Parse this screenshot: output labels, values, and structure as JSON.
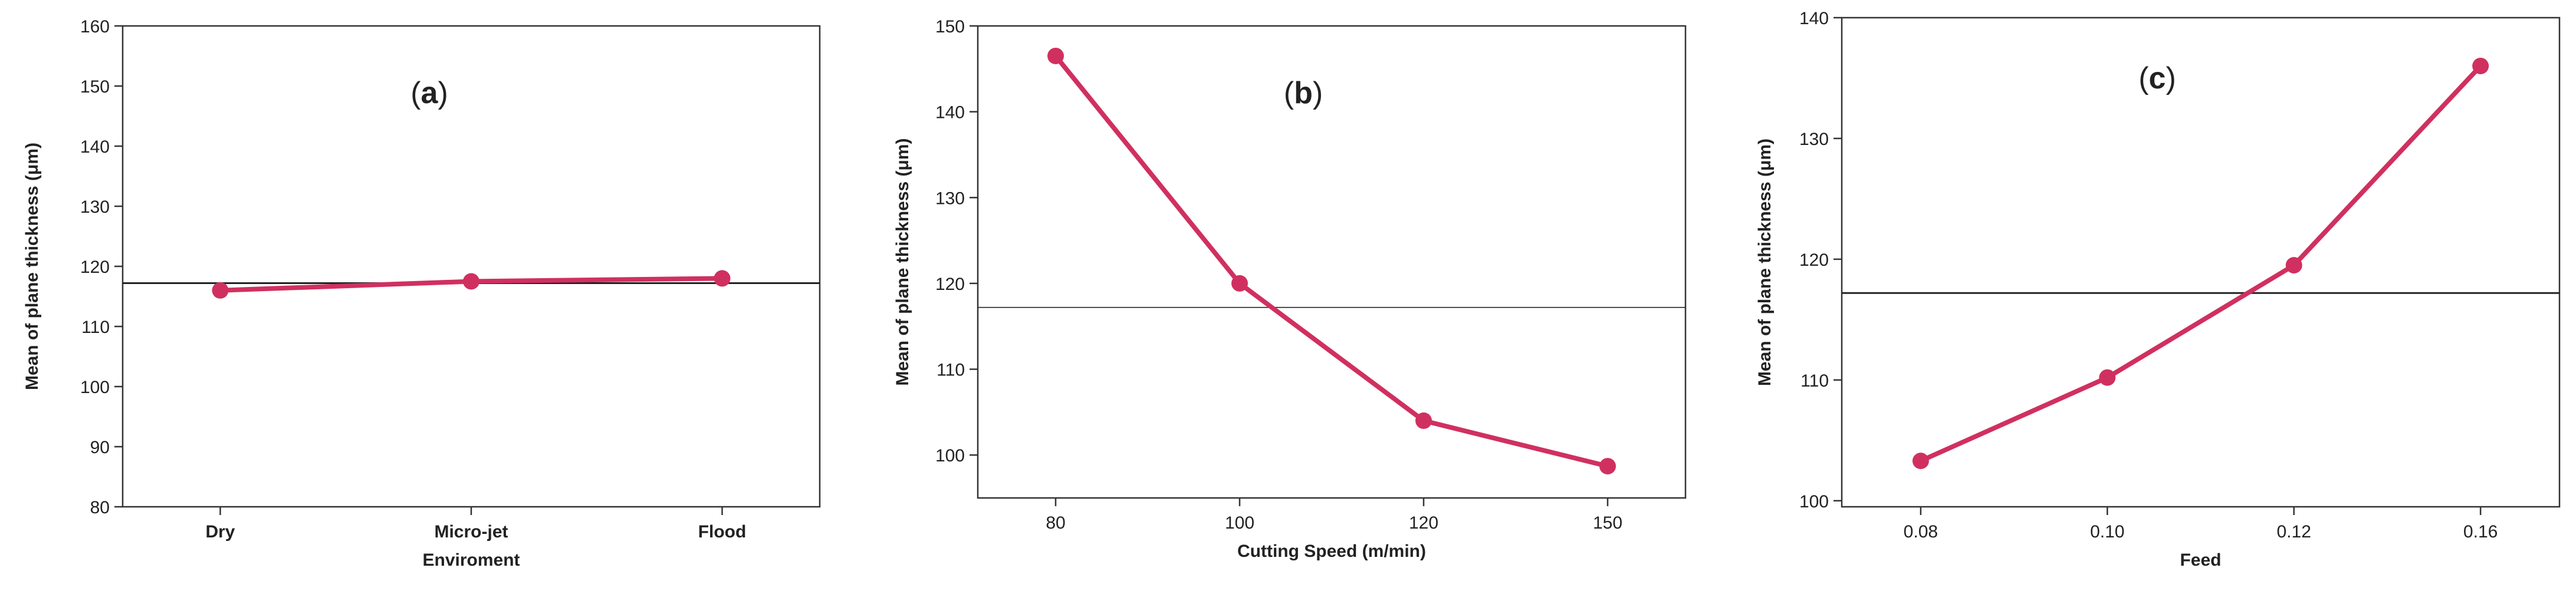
{
  "colors": {
    "series": "#D03060",
    "frame": "#333333",
    "reference": "#222222"
  },
  "chart_data": [
    {
      "type": "line",
      "panel_label": "a",
      "title": "",
      "xlabel": "Enviroment",
      "ylabel": "Mean of plane thickness (μm)",
      "categories": [
        "Dry",
        "Micro-jet",
        "Flood"
      ],
      "values": [
        116,
        117.5,
        118
      ],
      "reference_line": 117.2,
      "ylim": [
        80,
        160
      ],
      "yticks": [
        80,
        90,
        100,
        110,
        120,
        130,
        140,
        150,
        160
      ],
      "grid": false
    },
    {
      "type": "line",
      "panel_label": "b",
      "title": "",
      "xlabel": "Cutting Speed (m/min)",
      "ylabel": "Mean of plane thickness (μm)",
      "categories": [
        "80",
        "100",
        "120",
        "150"
      ],
      "values": [
        146.5,
        120,
        104,
        98.7
      ],
      "reference_line": 117.2,
      "ylim": [
        95,
        150
      ],
      "yticks": [
        100,
        110,
        120,
        130,
        140,
        150
      ],
      "grid": false
    },
    {
      "type": "line",
      "panel_label": "c",
      "title": "",
      "xlabel": "Feed",
      "ylabel": "Mean of plane thickness (μm)",
      "categories": [
        "0.08",
        "0.10",
        "0.12",
        "0.16"
      ],
      "values": [
        103.3,
        110.2,
        119.5,
        136
      ],
      "reference_line": 117.2,
      "ylim": [
        99.5,
        140
      ],
      "yticks": [
        100,
        110,
        120,
        130,
        140
      ],
      "grid": false
    }
  ]
}
